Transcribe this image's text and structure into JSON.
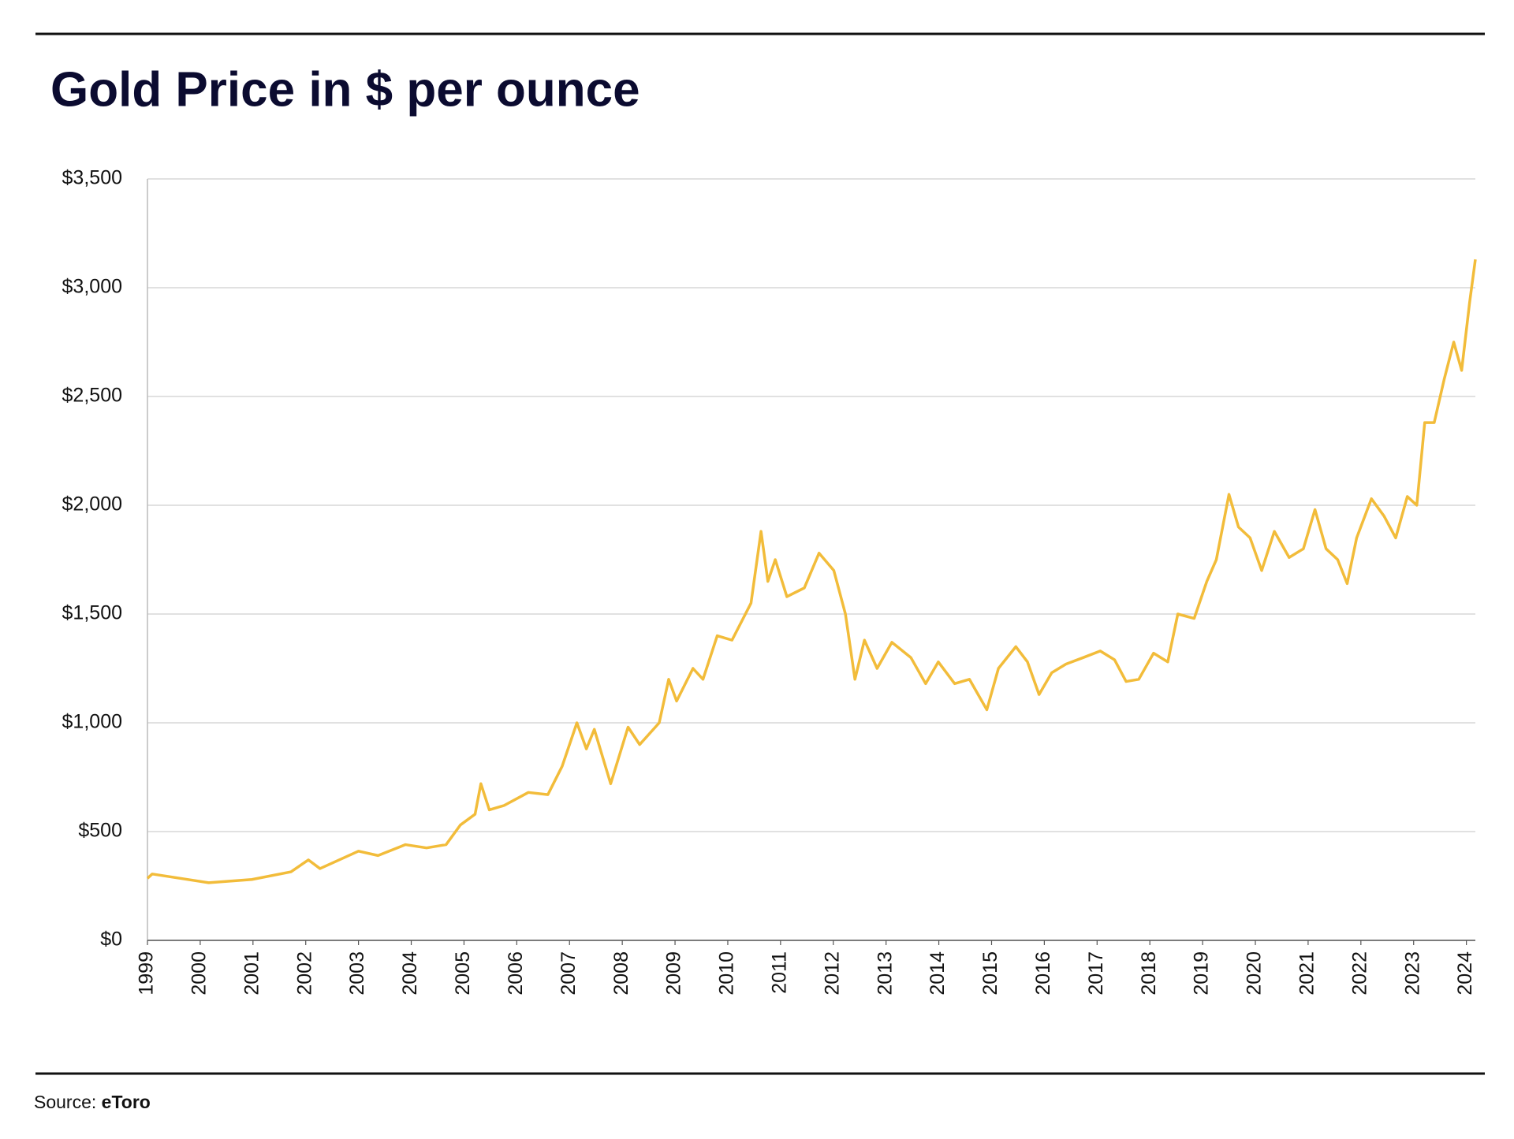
{
  "chart_data": {
    "type": "line",
    "title": "Gold Price in $ per ounce",
    "source_label": "Source:",
    "source": "eToro",
    "x": [
      1999.0,
      1999.09,
      2000.16,
      2000.98,
      2001.72,
      2002.05,
      2002.27,
      2003.0,
      2003.37,
      2003.89,
      2004.29,
      2004.66,
      2004.93,
      2005.21,
      2005.32,
      2005.48,
      2005.76,
      2006.22,
      2006.59,
      2006.86,
      2007.14,
      2007.32,
      2007.47,
      2007.78,
      2008.11,
      2008.33,
      2008.7,
      2008.88,
      2009.03,
      2009.34,
      2009.53,
      2009.8,
      2010.08,
      2010.44,
      2010.63,
      2010.76,
      2010.9,
      2011.12,
      2011.45,
      2011.73,
      2012.01,
      2012.23,
      2012.41,
      2012.59,
      2012.83,
      2013.11,
      2013.47,
      2013.75,
      2013.99,
      2014.3,
      2014.58,
      2014.91,
      2015.13,
      2015.46,
      2015.68,
      2015.9,
      2016.14,
      2016.41,
      2016.74,
      2017.06,
      2017.33,
      2017.55,
      2017.79,
      2018.07,
      2018.34,
      2018.53,
      2018.84,
      2019.08,
      2019.26,
      2019.5,
      2019.68,
      2019.9,
      2020.12,
      2020.36,
      2020.64,
      2020.91,
      2021.13,
      2021.34,
      2021.56,
      2021.74,
      2021.92,
      2022.2,
      2022.44,
      2022.66,
      2022.88,
      2023.06,
      2023.21,
      2023.39,
      2023.58,
      2023.76,
      2023.91,
      2024.06,
      2024.17
    ],
    "series": [
      {
        "name": "Gold price",
        "color": "#f2bc3a",
        "values": [
          285,
          305,
          265,
          280,
          315,
          370,
          330,
          410,
          390,
          440,
          425,
          440,
          530,
          580,
          720,
          600,
          620,
          680,
          670,
          800,
          1000,
          880,
          970,
          720,
          980,
          900,
          1000,
          1200,
          1100,
          1250,
          1200,
          1400,
          1380,
          1550,
          1880,
          1650,
          1750,
          1580,
          1620,
          1780,
          1700,
          1500,
          1200,
          1380,
          1250,
          1370,
          1300,
          1180,
          1280,
          1180,
          1200,
          1060,
          1250,
          1350,
          1280,
          1130,
          1230,
          1270,
          1300,
          1330,
          1290,
          1190,
          1200,
          1320,
          1280,
          1500,
          1480,
          1650,
          1750,
          2050,
          1900,
          1850,
          1700,
          1880,
          1760,
          1800,
          1980,
          1800,
          1750,
          1640,
          1850,
          2030,
          1950,
          1850,
          2040,
          2000,
          2380,
          2380,
          2580,
          2750,
          2620,
          2930,
          3130
        ]
      }
    ],
    "xlim": [
      1999,
      2024.17
    ],
    "xticks": [
      1999,
      2000,
      2001,
      2002,
      2003,
      2004,
      2005,
      2006,
      2007,
      2008,
      2009,
      2010,
      2011,
      2012,
      2013,
      2014,
      2015,
      2016,
      2017,
      2018,
      2019,
      2020,
      2021,
      2022,
      2023,
      2024
    ],
    "ylim": [
      0,
      3500
    ],
    "yticks": [
      {
        "value": 0,
        "label": "$0"
      },
      {
        "value": 500,
        "label": "$500"
      },
      {
        "value": 1000,
        "label": "$1,000"
      },
      {
        "value": 1500,
        "label": "$1,500"
      },
      {
        "value": 2000,
        "label": "$2,000"
      },
      {
        "value": 2500,
        "label": "$2,500"
      },
      {
        "value": 3000,
        "label": "$3,000"
      },
      {
        "value": 3500,
        "label": "$3,500"
      }
    ],
    "grid": true
  }
}
